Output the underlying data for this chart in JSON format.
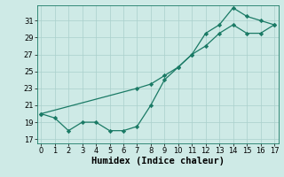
{
  "line1_x": [
    0,
    1,
    2,
    3,
    4,
    5,
    6,
    7,
    8,
    9,
    10,
    11,
    12,
    13,
    14,
    15,
    16,
    17
  ],
  "line1_y": [
    20.0,
    19.5,
    18.0,
    19.0,
    19.0,
    18.0,
    18.0,
    18.5,
    21.0,
    24.0,
    25.5,
    27.0,
    29.5,
    30.5,
    32.5,
    31.5,
    31.0,
    30.5
  ],
  "line2_x": [
    0,
    7,
    8,
    9,
    10,
    11,
    12,
    13,
    14,
    15,
    16,
    17
  ],
  "line2_y": [
    20.0,
    23.0,
    23.5,
    24.5,
    25.5,
    27.0,
    28.0,
    29.5,
    30.5,
    29.5,
    29.5,
    30.5
  ],
  "line_color": "#1a7a65",
  "bg_color": "#ceeae6",
  "grid_color": "#aad0cc",
  "xlabel": "Humidex (Indice chaleur)",
  "xticks": [
    0,
    1,
    2,
    3,
    4,
    5,
    6,
    7,
    8,
    9,
    10,
    11,
    12,
    13,
    14,
    15,
    16,
    17
  ],
  "yticks": [
    17,
    19,
    21,
    23,
    25,
    27,
    29,
    31
  ],
  "xlim": [
    -0.3,
    17.3
  ],
  "ylim": [
    16.5,
    32.8
  ],
  "xlabel_fontsize": 7.5,
  "tick_fontsize": 6.0
}
